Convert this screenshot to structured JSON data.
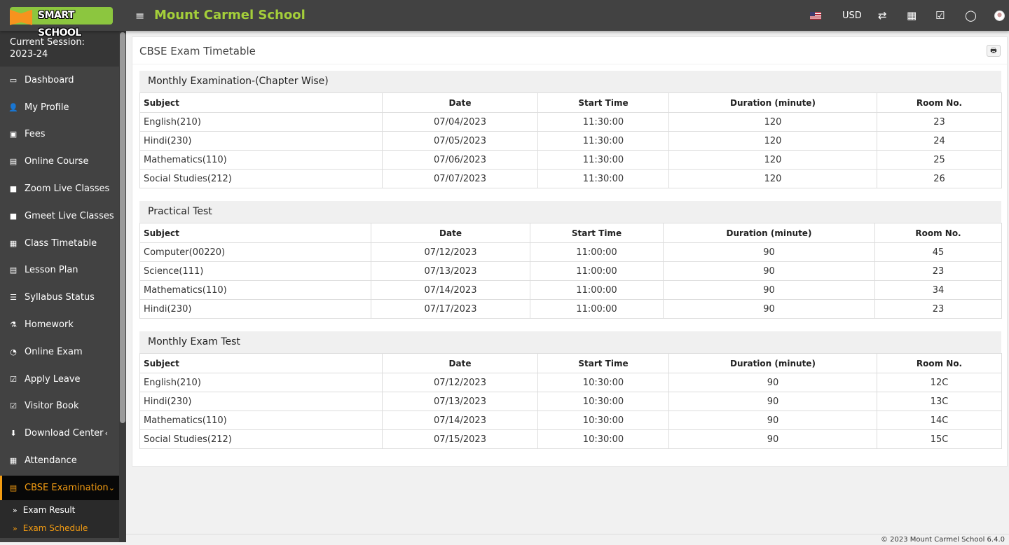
{
  "header": {
    "logo_text": "SMART SCHOOL",
    "school_name": "Mount Carmel School",
    "currency": "USD"
  },
  "sidebar": {
    "session_label": "Current Session:",
    "session_value": "2023-24",
    "items": [
      {
        "label": "Dashboard",
        "icon": "▭"
      },
      {
        "label": "My Profile",
        "icon": "👤"
      },
      {
        "label": "Fees",
        "icon": "▣"
      },
      {
        "label": "Online Course",
        "icon": "▤"
      },
      {
        "label": "Zoom Live Classes",
        "icon": "■"
      },
      {
        "label": "Gmeet Live Classes",
        "icon": "■"
      },
      {
        "label": "Class Timetable",
        "icon": "▦"
      },
      {
        "label": "Lesson Plan",
        "icon": "▤"
      },
      {
        "label": "Syllabus Status",
        "icon": "☰"
      },
      {
        "label": "Homework",
        "icon": "⚗"
      },
      {
        "label": "Online Exam",
        "icon": "◔"
      },
      {
        "label": "Apply Leave",
        "icon": "☑"
      },
      {
        "label": "Visitor Book",
        "icon": "☑"
      },
      {
        "label": "Download Center",
        "icon": "⬇"
      }
    ],
    "attendance": "Attendance",
    "active": "CBSE Examination",
    "submenu": [
      "Exam Result",
      "Exam Schedule"
    ]
  },
  "page": {
    "title": "CBSE Exam Timetable",
    "columns": [
      "Subject",
      "Date",
      "Start Time",
      "Duration (minute)",
      "Room No."
    ],
    "sections": [
      {
        "name": "Monthly Examination-(Chapter Wise)",
        "rows": [
          [
            "English(210)",
            "07/04/2023",
            "11:30:00",
            "120",
            "23"
          ],
          [
            "Hindi(230)",
            "07/05/2023",
            "11:30:00",
            "120",
            "24"
          ],
          [
            "Mathematics(110)",
            "07/06/2023",
            "11:30:00",
            "120",
            "25"
          ],
          [
            "Social Studies(212)",
            "07/07/2023",
            "11:30:00",
            "120",
            "26"
          ]
        ]
      },
      {
        "name": "Practical Test",
        "rows": [
          [
            "Computer(00220)",
            "07/12/2023",
            "11:00:00",
            "90",
            "45"
          ],
          [
            "Science(111)",
            "07/13/2023",
            "11:00:00",
            "90",
            "23"
          ],
          [
            "Mathematics(110)",
            "07/14/2023",
            "11:00:00",
            "90",
            "34"
          ],
          [
            "Hindi(230)",
            "07/17/2023",
            "11:00:00",
            "90",
            "23"
          ]
        ]
      },
      {
        "name": "Monthly Exam Test",
        "rows": [
          [
            "English(210)",
            "07/12/2023",
            "10:30:00",
            "90",
            "12C"
          ],
          [
            "Hindi(230)",
            "07/13/2023",
            "10:30:00",
            "90",
            "13C"
          ],
          [
            "Mathematics(110)",
            "07/14/2023",
            "10:30:00",
            "90",
            "14C"
          ],
          [
            "Social Studies(212)",
            "07/15/2023",
            "10:30:00",
            "90",
            "15C"
          ]
        ]
      }
    ]
  },
  "footer": "© 2023 Mount Carmel School 6.4.0"
}
